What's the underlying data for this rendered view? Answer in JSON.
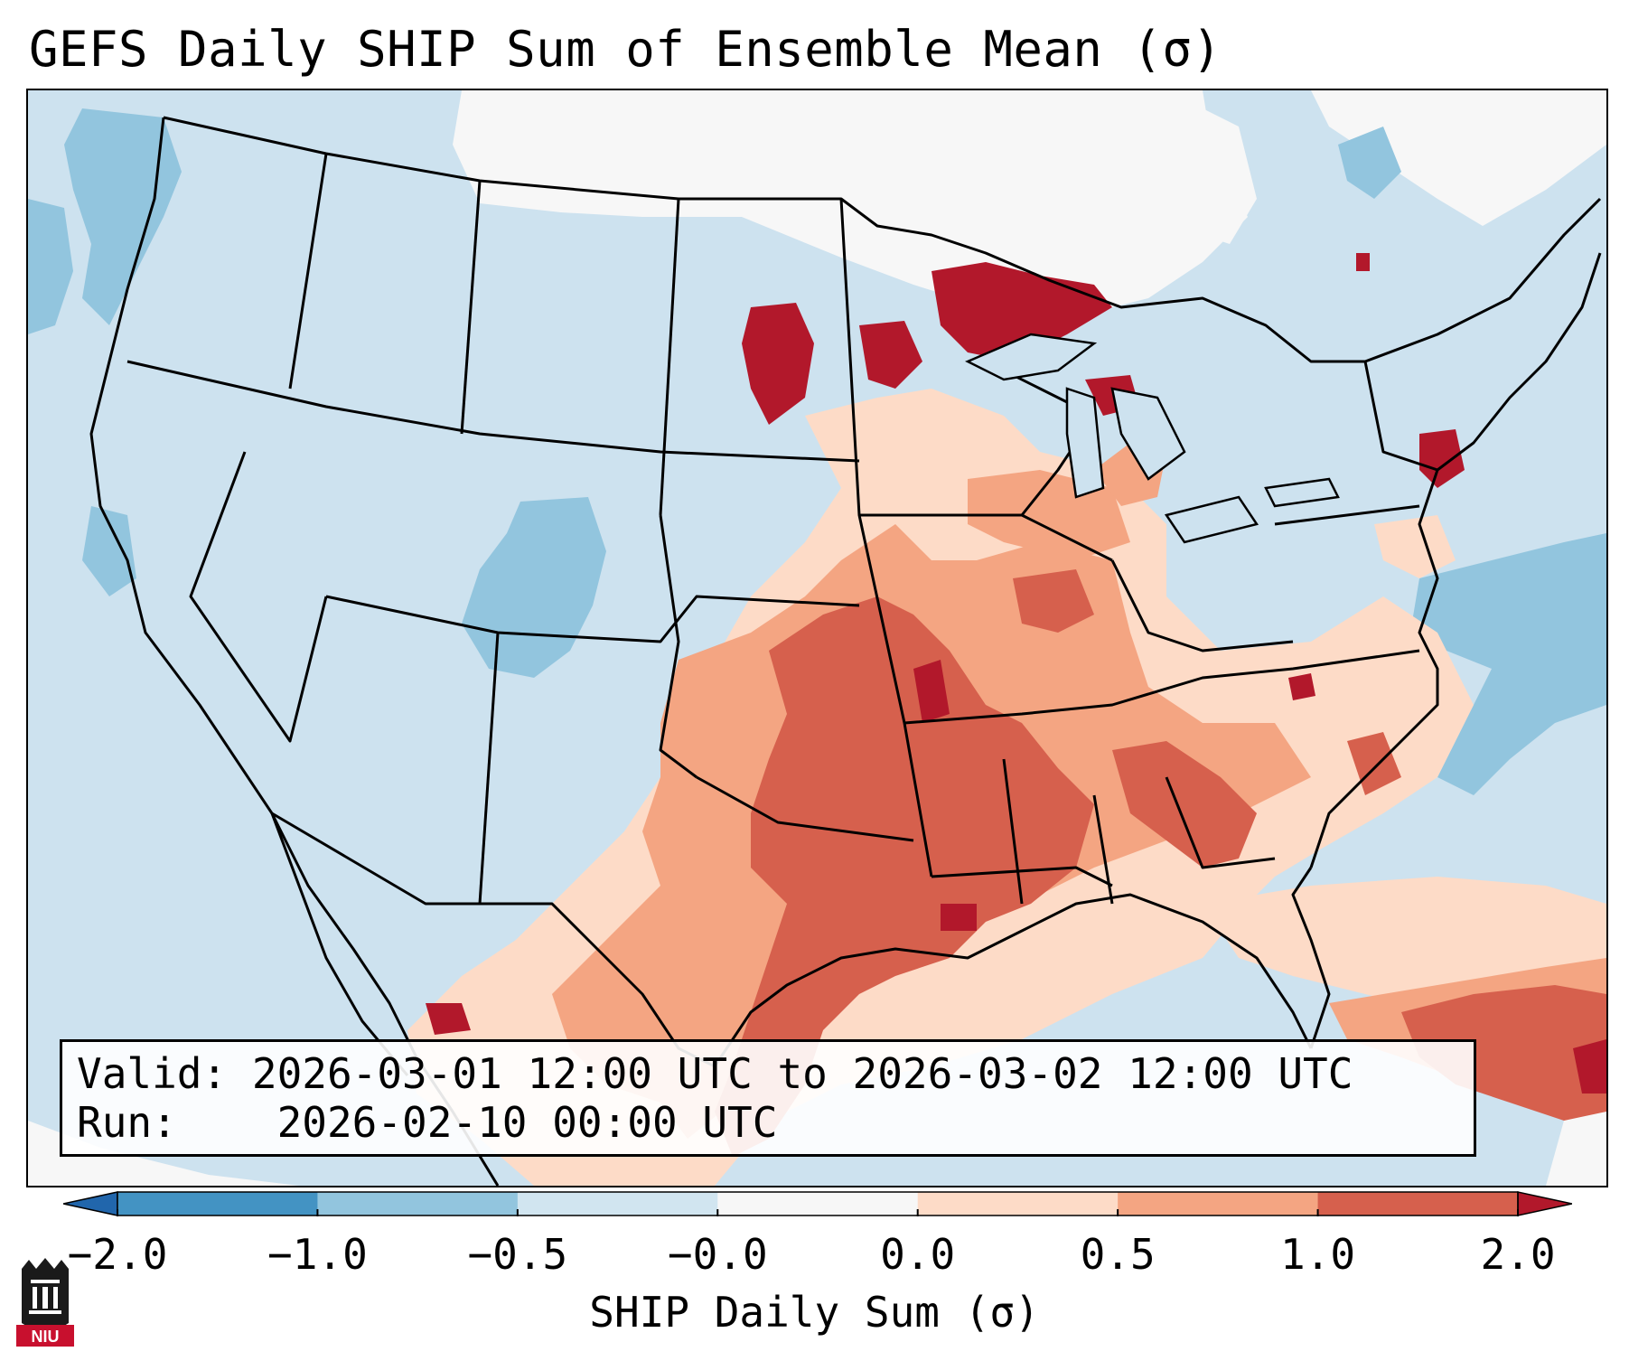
{
  "title": "GEFS Daily SHIP Sum of Ensemble Mean (σ)",
  "info": {
    "valid_label": "Valid:",
    "valid_value": "2026-03-01 12:00 UTC to 2026-03-02 12:00 UTC",
    "run_label": "Run:",
    "run_value": "2026-02-10 00:00 UTC"
  },
  "colorbar": {
    "label": "SHIP Daily Sum (σ)",
    "ticks": [
      "−2.0",
      "−1.0",
      "−0.5",
      "−0.0",
      "0.0",
      "0.5",
      "1.0",
      "2.0"
    ],
    "bins": [
      {
        "range": "< -2.0",
        "color": "#2166ac"
      },
      {
        "range": "-2.0 to -1.0",
        "color": "#4393c3"
      },
      {
        "range": "-1.0 to -0.5",
        "color": "#92c5de"
      },
      {
        "range": "-0.5 to -0.0",
        "color": "#d1e5f0"
      },
      {
        "range": "-0.0 to 0.0",
        "color": "#f7f7f7"
      },
      {
        "range": "0.0 to 0.5",
        "color": "#fddbc7"
      },
      {
        "range": "0.5 to 1.0",
        "color": "#f4a582"
      },
      {
        "range": "1.0 to 2.0",
        "color": "#d6604d"
      },
      {
        "range": "> 2.0",
        "color": "#b2182b"
      }
    ]
  },
  "map": {
    "projection": "Lambert Conformal",
    "background_color": "#cde2ef",
    "boundaries": "state and country borders, coastlines",
    "anomaly_regions": [
      {
        "region": "Canada prairies / northern Ontario",
        "level": "-0.0 to 0.0"
      },
      {
        "region": "Texas and southern Plains",
        "level": "0.5 to 1.0"
      },
      {
        "region": "Oklahoma, Arkansas, Missouri, Louisiana",
        "level": "1.0 to 2.0"
      },
      {
        "region": "Upper Michigan / northern Minnesota",
        "level": "> 2.0"
      },
      {
        "region": "Gulf of Mexico",
        "level": "0.5 to 1.0"
      },
      {
        "region": "Mississippi and Alabama",
        "level": "1.0 to 2.0"
      },
      {
        "region": "Tennessee Valley / Georgia",
        "level": "0.5 to 1.0"
      },
      {
        "region": "New Jersey",
        "level": "> 2.0"
      },
      {
        "region": "Colorado",
        "level": "-1.0 to -0.5"
      },
      {
        "region": "Western Atlantic",
        "level": "-1.0 to -0.5"
      },
      {
        "region": "Caribbean",
        "level": "1.0 to 2.0"
      }
    ]
  },
  "logo": {
    "text": "NIU"
  }
}
